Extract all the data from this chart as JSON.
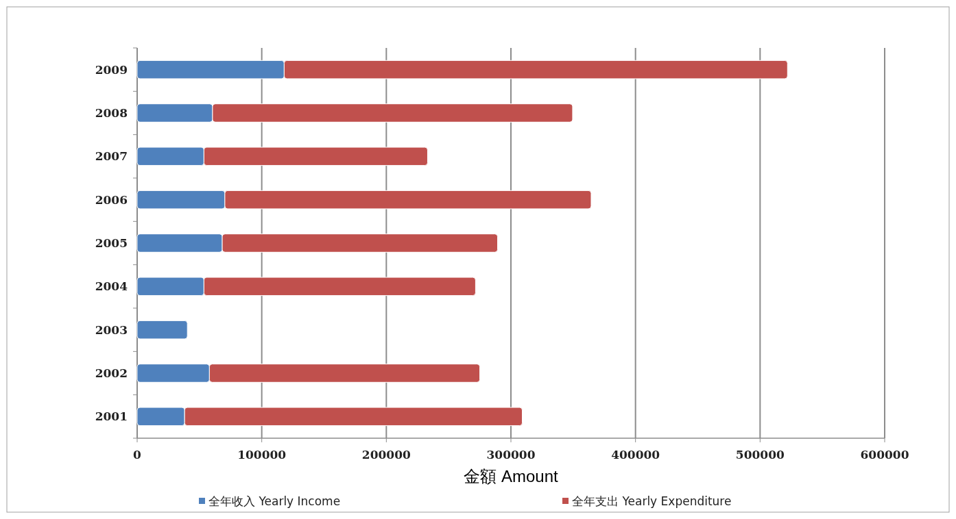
{
  "chart_data": {
    "type": "bar",
    "orientation": "horizontal",
    "stacked": true,
    "xlabel": "金額 Amount",
    "categories": [
      "2009",
      "2008",
      "2007",
      "2006",
      "2005",
      "2004",
      "2003",
      "2002",
      "2001"
    ],
    "series": [
      {
        "name": "全年收入 Yearly Income",
        "color": "#4f81bd",
        "values": [
          118000,
          60500,
          53600,
          70400,
          68300,
          53600,
          40300,
          58000,
          38100
        ]
      },
      {
        "name": "全年支出 Yearly Expenditure",
        "color": "#c0504d",
        "values": [
          404000,
          289000,
          179500,
          294000,
          221000,
          218000,
          null,
          217000,
          271000
        ]
      }
    ],
    "xlim": [
      0,
      600000
    ],
    "xticks": [
      0,
      100000,
      200000,
      300000,
      400000,
      500000,
      600000
    ],
    "grid": "x",
    "legend": "bottom"
  }
}
